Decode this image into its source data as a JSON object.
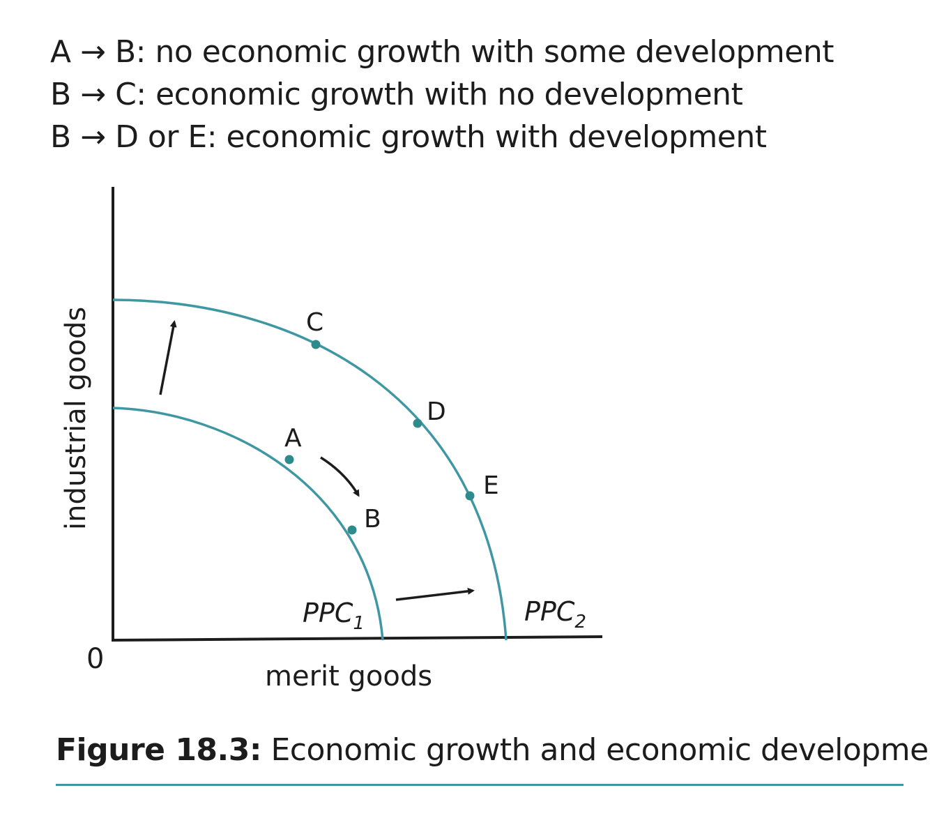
{
  "legend": [
    {
      "from": "A",
      "arrow": "→",
      "text": "B: no economic growth with some development"
    },
    {
      "from": "B",
      "arrow": "→",
      "text": "C: economic growth with no development"
    },
    {
      "from": "B",
      "arrow": "→",
      "text": "D or E: economic growth with development"
    }
  ],
  "diagram": {
    "origin_label": "0",
    "x_axis_label": "merit goods",
    "y_axis_label": "industrial goods",
    "curves": [
      {
        "name": "PPC",
        "subscript": "1"
      },
      {
        "name": "PPC",
        "subscript": "2"
      }
    ],
    "points": [
      "A",
      "B",
      "C",
      "D",
      "E"
    ],
    "curve_color": "#3f97a3",
    "point_color": "#2e8b8b"
  },
  "caption": {
    "label": "Figure 18.3:",
    "text": " Economic growth and economic development"
  }
}
